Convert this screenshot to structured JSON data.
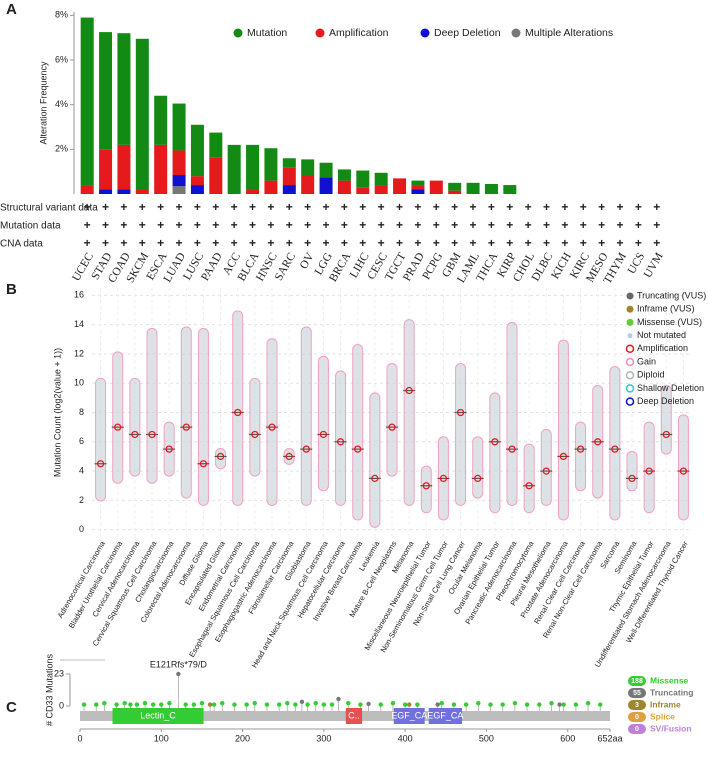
{
  "chart_data": [
    {
      "type": "bar",
      "label": "A",
      "ylabel": "Alteration Frequency",
      "categories": [
        "UCEC",
        "STAD",
        "COAD",
        "SKCM",
        "ESCA",
        "LUAD",
        "LUSC",
        "PAAD",
        "ACC",
        "BLCA",
        "HNSC",
        "SARC",
        "OV",
        "LGG",
        "BRCA",
        "LIHC",
        "CESC",
        "TGCT",
        "PRAD",
        "PCPG",
        "GBM",
        "LAML",
        "THCA",
        "KIRP",
        "CHOL",
        "DLBC",
        "KICH",
        "KIRC",
        "MESO",
        "THYM",
        "UCS",
        "UVM"
      ],
      "series": [
        {
          "name": "Mutation",
          "color": "#138a13",
          "values": [
            7.5,
            5.25,
            5.0,
            6.75,
            2.2,
            2.1,
            2.3,
            1.1,
            2.2,
            2.0,
            1.45,
            0.4,
            0.7,
            0.65,
            0.5,
            0.75,
            0.55,
            0,
            0.2,
            0,
            0.35,
            0.5,
            0.45,
            0.4,
            0,
            0,
            0,
            0,
            0,
            0,
            0,
            0
          ]
        },
        {
          "name": "Amplification",
          "color": "#e41a1c",
          "values": [
            0.4,
            1.8,
            2.0,
            0.2,
            2.2,
            1.1,
            0.4,
            1.65,
            0,
            0.2,
            0.6,
            0.8,
            0.85,
            0,
            0.6,
            0.3,
            0.4,
            0.7,
            0.2,
            0.6,
            0.15,
            0,
            0,
            0,
            0,
            0,
            0,
            0,
            0,
            0,
            0,
            0
          ]
        },
        {
          "name": "Deep Deletion",
          "color": "#1010d0",
          "values": [
            0,
            0.2,
            0.2,
            0,
            0,
            0.5,
            0.4,
            0,
            0,
            0,
            0,
            0.4,
            0,
            0.75,
            0,
            0,
            0,
            0,
            0.2,
            0,
            0,
            0,
            0,
            0,
            0,
            0,
            0,
            0,
            0,
            0,
            0,
            0
          ]
        },
        {
          "name": "Multiple Alterations",
          "color": "#777777",
          "values": [
            0,
            0,
            0,
            0,
            0,
            0.35,
            0,
            0,
            0,
            0,
            0,
            0,
            0,
            0,
            0,
            0,
            0,
            0,
            0,
            0,
            0,
            0,
            0,
            0,
            0,
            0,
            0,
            0,
            0,
            0,
            0,
            0
          ]
        }
      ],
      "ylim": [
        0,
        8.15
      ],
      "yticks": [
        {
          "value": 2,
          "label": "2%"
        },
        {
          "value": 4,
          "label": "4%"
        },
        {
          "value": 6,
          "label": "6%"
        },
        {
          "value": 8,
          "label": "8%"
        }
      ],
      "matrix_rows": [
        "Structural variant data",
        "Mutation data",
        "CNA data"
      ],
      "matrix_symbol": "+"
    },
    {
      "type": "range",
      "label": "B",
      "ylabel": "Mutation Count (log2(value + 1))",
      "categories": [
        "Adrenocortical Carcinoma",
        "Bladder Urothelial Carcinoma",
        "Cervical Adenocarcinoma",
        "Cervical Squamous Cell Carcinoma",
        "Cholangiocarcinoma",
        "Colorectal Adenocarcinoma",
        "Diffuse Glioma",
        "Encapsulated Glioma",
        "Endometrial Carcinoma",
        "Esophageal Squamous Cell Carcinoma",
        "Esophagogastric Adenocarcinoma",
        "Fibrolamellar Carcinoma",
        "Glioblastoma",
        "Head and Neck Squamous Cell Carcinoma",
        "Hepatocellular Carcinoma",
        "Invasive Breast Carcinoma",
        "Leukemia",
        "Mature B-Cell Neoplasms",
        "Melanoma",
        "Miscellaneous Neuroepithelial Tumor",
        "Non-Seminomatous Germ Cell Tumor",
        "Non-Small Cell Lung Cancer",
        "Ocular Melanoma",
        "Ovarian Epithelial Tumor",
        "Pancreatic Adenocarcinoma",
        "Pheochromocytoma",
        "Pleural Mesothelioma",
        "Prostate Adenocarcinoma",
        "Renal Clear Cell Carcinoma",
        "Renal Non-Clear Cell Carcinoma",
        "Sarcoma",
        "Seminoma",
        "Thymic Epithelial Tumor",
        "Undifferentiated Stomach Adenocarcinoma",
        "Well-Differentiated Thyroid Cancer"
      ],
      "low": [
        2.3,
        3.5,
        4,
        3.5,
        4,
        2.5,
        2,
        4.5,
        2,
        4,
        2,
        4.8,
        2,
        3,
        2,
        1,
        0.5,
        4,
        2,
        1.5,
        1,
        2,
        2.5,
        1.5,
        2,
        1.5,
        2,
        1,
        3,
        2.5,
        1,
        3,
        1.5,
        5.5,
        1
      ],
      "median": [
        4.5,
        7,
        6.5,
        6.5,
        5.5,
        7,
        4.5,
        5,
        8,
        6.5,
        7,
        5,
        5.5,
        6.5,
        6,
        5.5,
        3.5,
        7,
        9.5,
        3,
        3.5,
        8,
        3.5,
        6,
        5.5,
        3,
        4,
        5,
        5.5,
        6,
        5.5,
        3.5,
        4,
        6.5,
        4
      ],
      "high": [
        10,
        11.8,
        10,
        13.4,
        7,
        13.5,
        13.4,
        5.2,
        14.6,
        10,
        12.7,
        5.2,
        13.5,
        11.5,
        10.5,
        12.3,
        9,
        11,
        14,
        4,
        6,
        11,
        6,
        9,
        13.8,
        5.5,
        6.5,
        12.6,
        7,
        9.5,
        10.8,
        5,
        7,
        9.5,
        7.5
      ],
      "ylim": [
        -0.5,
        16.5
      ],
      "yticks": [
        0,
        2,
        4,
        6,
        8,
        10,
        12,
        14,
        16
      ],
      "grid": true,
      "legend": [
        {
          "name": "Truncating (VUS)",
          "color": "#666666",
          "style": "dot"
        },
        {
          "name": "Inframe (VUS)",
          "color": "#a0852a",
          "style": "dot"
        },
        {
          "name": "Missense (VUS)",
          "color": "#66cc33",
          "style": "dot"
        },
        {
          "name": "Not mutated",
          "color": "#a8d0e8",
          "style": "small"
        },
        {
          "name": "Amplification",
          "color": "#e41a1c",
          "style": "ring"
        },
        {
          "name": "Gain",
          "color": "#f08cb0",
          "style": "ring"
        },
        {
          "name": "Diploid",
          "color": "#b0b8c0",
          "style": "ring"
        },
        {
          "name": "Shallow Deletion",
          "color": "#33c4d8",
          "style": "ring"
        },
        {
          "name": "Deep Deletion",
          "color": "#1010d0",
          "style": "ring"
        }
      ]
    },
    {
      "type": "lollipop",
      "label": "C",
      "ylabel": "# CD33 Mutations",
      "annotation": "E121Rfs*79/D",
      "xlim": [
        0,
        652
      ],
      "ylim": [
        0,
        23
      ],
      "xticks": [
        0,
        100,
        200,
        300,
        400,
        500,
        600,
        {
          "value": 652,
          "label": "652aa"
        }
      ],
      "yticks": [
        0,
        23
      ],
      "series": [
        {
          "name": "Missense",
          "count": 188,
          "color": "#33cc33",
          "x": [
            5,
            20,
            30,
            45,
            55,
            62,
            70,
            80,
            90,
            100,
            110,
            130,
            140,
            150,
            165,
            175,
            190,
            205,
            215,
            230,
            245,
            255,
            265,
            280,
            290,
            300,
            310,
            330,
            345,
            370,
            385,
            400,
            415,
            445,
            460,
            475,
            490,
            505,
            520,
            535,
            550,
            565,
            580,
            595,
            610,
            625,
            640
          ],
          "values": [
            1,
            1,
            2,
            1,
            2,
            1,
            1,
            2,
            1,
            1,
            2,
            1,
            1,
            2,
            1,
            2,
            1,
            1,
            2,
            1,
            1,
            2,
            1,
            1,
            2,
            1,
            1,
            2,
            1,
            1,
            2,
            1,
            1,
            2,
            1,
            1,
            2,
            1,
            1,
            2,
            1,
            1,
            2,
            1,
            1,
            2,
            1
          ]
        },
        {
          "name": "Truncating",
          "count": 55,
          "color": "#777777",
          "x": [
            121,
            273,
            318,
            355,
            440,
            590
          ],
          "values": [
            23,
            3,
            5,
            1.5,
            1,
            1
          ]
        },
        {
          "name": "Inframe",
          "count": 3,
          "color": "#a0852a",
          "x": [
            160,
            405
          ],
          "values": [
            1,
            1
          ]
        },
        {
          "name": "Splice",
          "count": 0,
          "color": "#e0a040",
          "x": [],
          "values": []
        },
        {
          "name": "SV/Fusion",
          "count": 0,
          "color": "#c080d8",
          "x": [],
          "values": []
        }
      ],
      "domains": [
        {
          "name": "Lectin_C",
          "start": 40,
          "end": 152,
          "color": "#33cc33"
        },
        {
          "name": "C..",
          "start": 327,
          "end": 347,
          "color": "#e85050"
        },
        {
          "name": "EGF_CA",
          "start": 386,
          "end": 424,
          "color": "#7070e0"
        },
        {
          "name": "EGF_CA",
          "start": 429,
          "end": 470,
          "color": "#7070e0"
        }
      ]
    }
  ]
}
